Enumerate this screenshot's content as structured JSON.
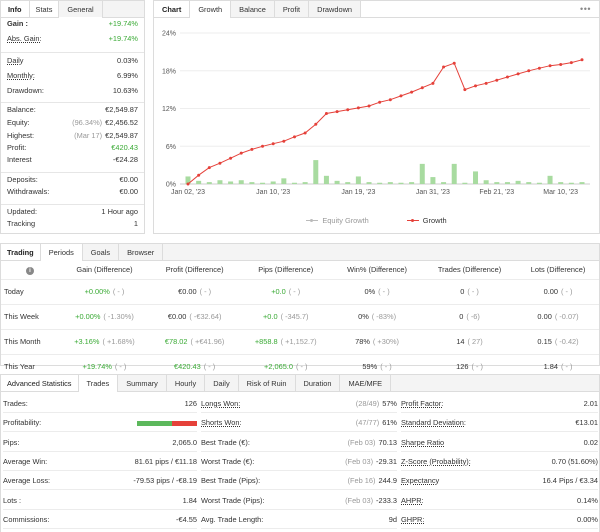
{
  "info_panel": {
    "tabs": [
      "Info",
      "Stats",
      "General"
    ],
    "rows": [
      {
        "label": "Gain :",
        "value": "+19.74%",
        "style": "green",
        "bold": true
      },
      {
        "label": "Abs. Gain:",
        "value": "+19.74%",
        "style": "green",
        "underline": true
      },
      {
        "label": "Daily",
        "value": "0.03%",
        "underline": true
      },
      {
        "label": "Monthly:",
        "value": "6.99%",
        "underline": true
      },
      {
        "label": "Drawdown:",
        "value": "10.63%"
      },
      {
        "label": "Balance:",
        "value": "€2,549.87"
      },
      {
        "label": "Equity:",
        "note": "(96.34%)",
        "value": "€2,456.52"
      },
      {
        "label": "Highest:",
        "note": "(Mar 17)",
        "value": "€2,549.87"
      },
      {
        "label": "Profit:",
        "value": "€420.43",
        "style": "green"
      },
      {
        "label": "Interest",
        "value": "-€24.28"
      },
      {
        "label": "Deposits:",
        "value": "€0.00"
      },
      {
        "label": "Withdrawals:",
        "value": "€0.00"
      },
      {
        "label": "Updated:",
        "value": "1 Hour ago"
      },
      {
        "label": "Tracking",
        "value": "1"
      }
    ]
  },
  "chart_panel": {
    "tabs": [
      "Chart",
      "Growth",
      "Balance",
      "Profit",
      "Drawdown"
    ],
    "menu_icon": "ellipsis-icon",
    "legend": [
      "Equity Growth",
      "Growth"
    ],
    "colors": {
      "growth": "#e5413a",
      "bars": "#a8dba0",
      "equity": "#bbbbbb"
    }
  },
  "chart_data": {
    "type": "line",
    "ylim": [
      0,
      24
    ],
    "yticks": [
      "0%",
      "6%",
      "12%",
      "18%",
      "24%"
    ],
    "xticks": [
      "Jan 02, '23",
      "Jan 10, '23",
      "Jan 19, '23",
      "Jan 31, '23",
      "Feb 21, '23",
      "Mar 10, '23"
    ],
    "series": [
      {
        "name": "Growth",
        "values": [
          0,
          1.4,
          2.6,
          3.3,
          4.1,
          4.9,
          5.5,
          6.0,
          6.4,
          6.8,
          7.5,
          8.1,
          9.5,
          11.2,
          11.5,
          11.8,
          12.1,
          12.4,
          13.0,
          13.4,
          14.0,
          14.6,
          15.3,
          16.0,
          18.6,
          19.2,
          15.0,
          15.6,
          16.0,
          16.5,
          17.0,
          17.5,
          18.0,
          18.4,
          18.8,
          19.0,
          19.3,
          19.74
        ]
      },
      {
        "name": "Equity Growth",
        "values": []
      }
    ],
    "bars": [
      1.2,
      0.5,
      0.3,
      0.6,
      0.4,
      0.6,
      0.3,
      0.2,
      0.4,
      0.9,
      0.2,
      0.3,
      3.8,
      1.3,
      0.5,
      0.3,
      1.2,
      0.3,
      0.2,
      0.3,
      0.2,
      0.3,
      3.2,
      1.1,
      0.3,
      3.2,
      0.2,
      2.0,
      0.6,
      0.3,
      0.3,
      0.5,
      0.3,
      0.2,
      1.3,
      0.3,
      0.2,
      0.3
    ]
  },
  "trading_panel": {
    "tabs": [
      "Trading",
      "Periods",
      "Goals",
      "Browser"
    ],
    "headers": [
      "",
      "Gain (Difference)",
      "Profit (Difference)",
      "Pips (Difference)",
      "Win% (Difference)",
      "Trades (Difference)",
      "Lots (Difference)"
    ],
    "rows": [
      {
        "period": "Today",
        "gain": "+0.00%",
        "gain_d": "( - )",
        "profit": "€0.00",
        "profit_d": "( - )",
        "pips": "+0.0",
        "pips_d": "( - )",
        "win": "0%",
        "win_d": "( - )",
        "trades": "0",
        "trades_d": "( - )",
        "lots": "0.00",
        "lots_d": "( - )",
        "gain_style": "green",
        "pips_style": "green"
      },
      {
        "period": "This Week",
        "gain": "+0.00%",
        "gain_d": "( -1.30%)",
        "profit": "€0.00",
        "profit_d": "( -€32.64)",
        "pips": "+0.0",
        "pips_d": "( -345.7)",
        "win": "0%",
        "win_d": "( -83%)",
        "trades": "0",
        "trades_d": "( -6)",
        "lots": "0.00",
        "lots_d": "( -0.07)",
        "gain_style": "green",
        "pips_style": "green"
      },
      {
        "period": "This Month",
        "gain": "+3.16%",
        "gain_d": "( +1.68%)",
        "profit": "€78.02",
        "profit_d": "( +€41.96)",
        "pips": "+858.8",
        "pips_d": "( +1,152.7)",
        "win": "78%",
        "win_d": "( +30%)",
        "trades": "14",
        "trades_d": "( 27)",
        "lots": "0.15",
        "lots_d": "( -0.42)",
        "gain_style": "green",
        "pips_style": "green",
        "profit_style": "green"
      },
      {
        "period": "This Year",
        "gain": "+19.74%",
        "gain_d": "( - )",
        "profit": "€420.43",
        "profit_d": "( - )",
        "pips": "+2,065.0",
        "pips_d": "( - )",
        "win": "59%",
        "win_d": "( - )",
        "trades": "126",
        "trades_d": "( - )",
        "lots": "1.84",
        "lots_d": "( - )",
        "gain_style": "green",
        "pips_style": "green",
        "profit_style": "green"
      }
    ]
  },
  "advanced_panel": {
    "tabs": [
      "Advanced Statistics",
      "Trades",
      "Summary",
      "Hourly",
      "Daily",
      "Risk of Ruin",
      "Duration",
      "MAE/MFE"
    ],
    "col1": [
      {
        "label": "Trades:",
        "value": "126"
      },
      {
        "label": "Profitability:",
        "bar": {
          "win": 0.59
        }
      },
      {
        "label": "Pips:",
        "value": "2,065.0"
      },
      {
        "label": "Average Win:",
        "value": "81.61 pips / €11.18"
      },
      {
        "label": "Average Loss:",
        "value": "-79.53 pips / -€8.19"
      },
      {
        "label": "Lots :",
        "value": "1.84"
      },
      {
        "label": "Commissions:",
        "value": "-€4.55"
      }
    ],
    "col2": [
      {
        "label": "Longs Won:",
        "note": "(28/49)",
        "value": "57%",
        "underline": true
      },
      {
        "label": "Shorts Won:",
        "note": "(47/77)",
        "value": "61%",
        "underline": true
      },
      {
        "label": "Best Trade (€):",
        "note": "(Feb 03)",
        "value": "70.13"
      },
      {
        "label": "Worst Trade (€):",
        "note": "(Feb 03)",
        "value": "-29.31"
      },
      {
        "label": "Best Trade (Pips):",
        "note": "(Feb 16)",
        "value": "244.9"
      },
      {
        "label": "Worst Trade (Pips):",
        "note": "(Feb 03)",
        "value": "-233.3"
      },
      {
        "label": "Avg. Trade Length:",
        "value": "9d"
      }
    ],
    "col3": [
      {
        "label": "Profit Factor:",
        "value": "2.01",
        "underline": true
      },
      {
        "label": "Standard Deviation:",
        "value": "€13.01",
        "underline": true
      },
      {
        "label": "Sharpe Ratio",
        "value": "0.02",
        "underline": true
      },
      {
        "label": "Z-Score (Probability):",
        "value": "0.70 (51.60%)",
        "underline": true
      },
      {
        "label": "Expectancy",
        "value": "16.4 Pips / €3.34",
        "underline": true
      },
      {
        "label": "AHPR:",
        "value": "0.14%",
        "underline": true
      },
      {
        "label": "GHPR:",
        "value": "0.00%",
        "underline": true
      }
    ]
  }
}
